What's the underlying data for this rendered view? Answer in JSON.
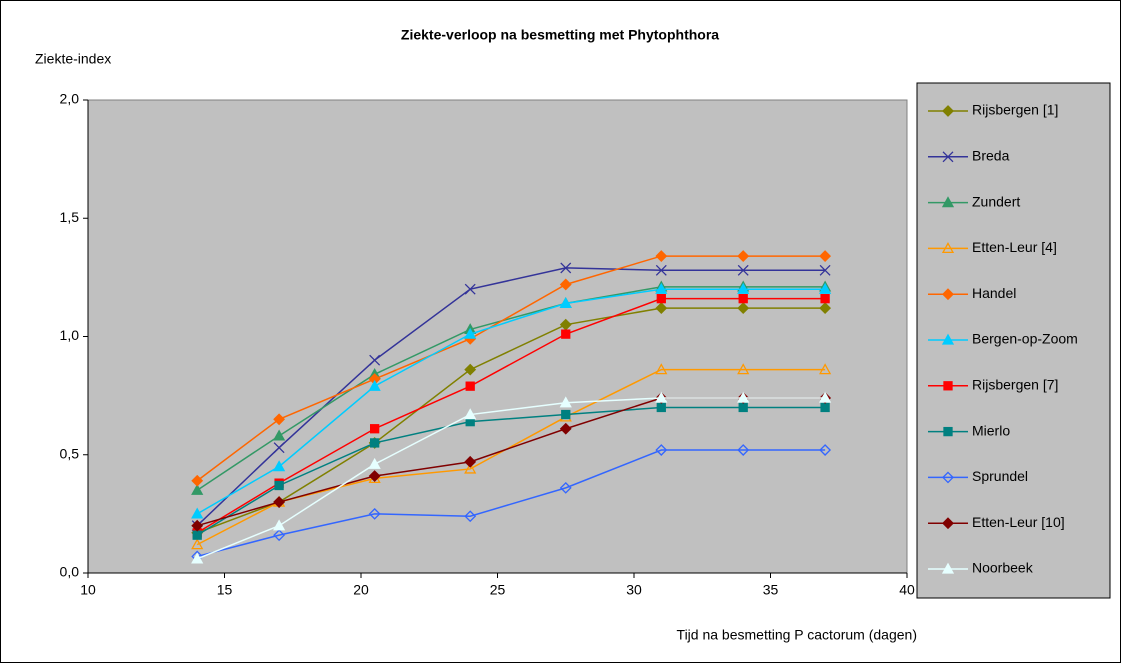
{
  "chart_data": {
    "type": "line",
    "title": "Ziekte-verloop na besmetting met Phytophthora",
    "y_label": "Ziekte-index",
    "x_label": "Tijd na besmetting P cactorum (dagen)",
    "x": [
      14,
      17,
      20.5,
      24,
      27.5,
      31,
      34,
      37
    ],
    "xlim": [
      10,
      40
    ],
    "xticks": [
      10,
      15,
      20,
      25,
      30,
      35,
      40
    ],
    "ylim": [
      0,
      2
    ],
    "yticks": [
      {
        "value": 0,
        "label": "0,0"
      },
      {
        "value": 0.5,
        "label": "0,5"
      },
      {
        "value": 1,
        "label": "1,0"
      },
      {
        "value": 1.5,
        "label": "1,5"
      },
      {
        "value": 2,
        "label": "2,0"
      }
    ],
    "grid": false,
    "legend": "right",
    "series": [
      {
        "name": "Rijsbergen [1]",
        "color": "#808000",
        "marker": "diamond",
        "values": [
          0.17,
          0.3,
          0.55,
          0.86,
          1.05,
          1.12,
          1.12,
          1.12
        ]
      },
      {
        "name": "Breda",
        "color": "#333399",
        "marker": "x",
        "values": [
          0.2,
          0.53,
          0.9,
          1.2,
          1.29,
          1.28,
          1.28,
          1.28
        ]
      },
      {
        "name": "Zundert",
        "color": "#339966",
        "marker": "triangle",
        "values": [
          0.35,
          0.58,
          0.84,
          1.03,
          1.14,
          1.21,
          1.21,
          1.21
        ]
      },
      {
        "name": "Etten-Leur [4]",
        "color": "#FF9900",
        "marker": "triangle-open",
        "values": [
          0.12,
          0.3,
          0.4,
          0.44,
          0.66,
          0.86,
          0.86,
          0.86
        ]
      },
      {
        "name": "Handel",
        "color": "#FF6600",
        "marker": "diamond",
        "values": [
          0.39,
          0.65,
          0.82,
          0.99,
          1.22,
          1.34,
          1.34,
          1.34
        ]
      },
      {
        "name": "Bergen-op-Zoom",
        "color": "#00CCFF",
        "marker": "triangle",
        "values": [
          0.25,
          0.45,
          0.79,
          1.01,
          1.14,
          1.2,
          1.2,
          1.2
        ]
      },
      {
        "name": "Rijsbergen [7]",
        "color": "#FF0000",
        "marker": "square",
        "values": [
          0.17,
          0.38,
          0.61,
          0.79,
          1.01,
          1.16,
          1.16,
          1.16
        ]
      },
      {
        "name": "Mierlo",
        "color": "#008080",
        "marker": "square",
        "values": [
          0.16,
          0.37,
          0.55,
          0.64,
          0.67,
          0.7,
          0.7,
          0.7
        ]
      },
      {
        "name": "Sprundel",
        "color": "#3366FF",
        "marker": "diamond-open",
        "values": [
          0.07,
          0.16,
          0.25,
          0.24,
          0.36,
          0.52,
          0.52,
          0.52
        ]
      },
      {
        "name": "Etten-Leur [10]",
        "color": "#800000",
        "marker": "diamond",
        "values": [
          0.2,
          0.3,
          0.41,
          0.47,
          0.61,
          0.74,
          0.74,
          0.74
        ]
      },
      {
        "name": "Noorbeek",
        "color": "#E6FFFF",
        "marker": "triangle",
        "values": [
          0.06,
          0.2,
          0.46,
          0.67,
          0.72,
          0.74,
          0.74,
          0.74
        ]
      }
    ]
  }
}
